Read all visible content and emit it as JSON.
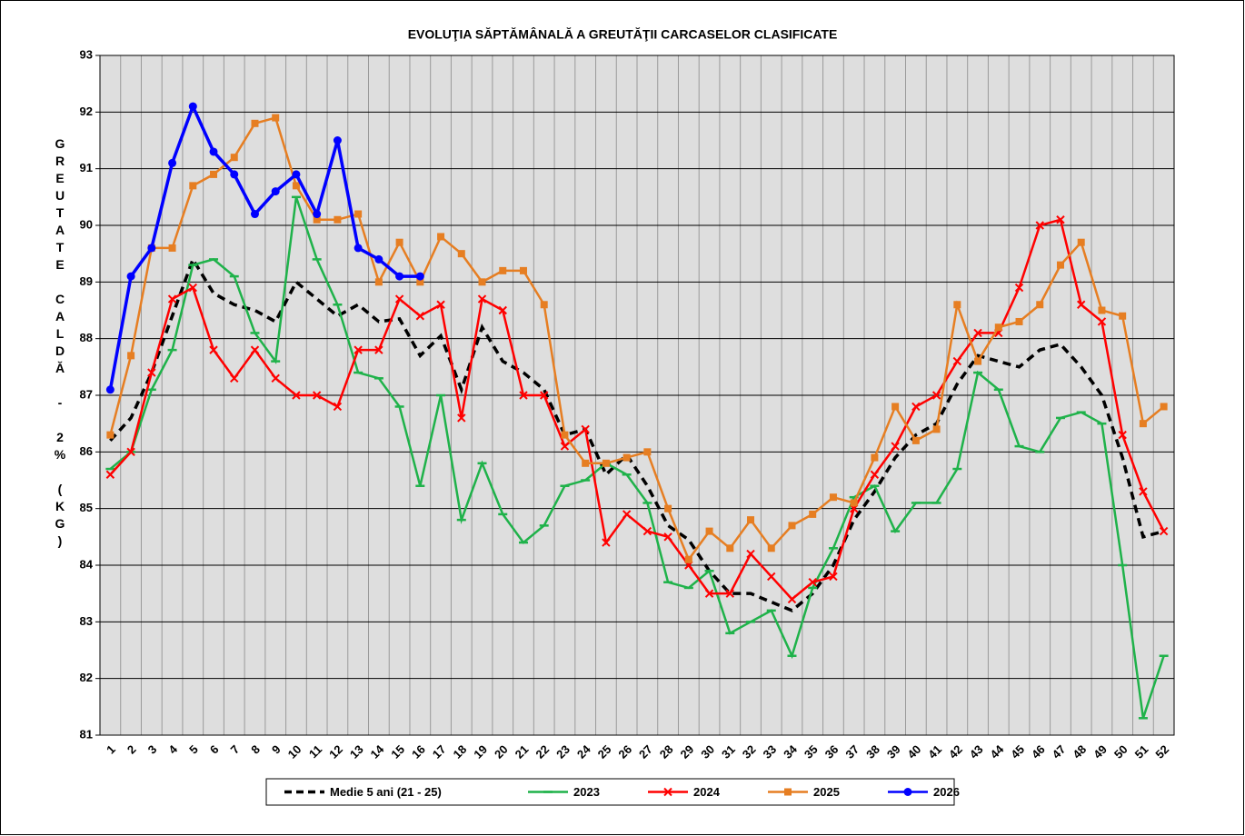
{
  "chart_data": {
    "type": "line",
    "title": "EVOLUŢIA SĂPTĂMÂNALĂ A GREUTĂŢII CARCASELOR CLASIFICATE",
    "ylabel": "GREUTATE CALDĂ - 2% (KG)",
    "categories": [
      "1",
      "2",
      "3",
      "4",
      "5",
      "6",
      "7",
      "8",
      "9",
      "10",
      "11",
      "12",
      "13",
      "14",
      "15",
      "16",
      "17",
      "18",
      "19",
      "20",
      "21",
      "22",
      "23",
      "24",
      "25",
      "26",
      "27",
      "28",
      "29",
      "30",
      "31",
      "32",
      "33",
      "34",
      "35",
      "36",
      "37",
      "38",
      "39",
      "40",
      "41",
      "42",
      "43",
      "44",
      "45",
      "46",
      "47",
      "48",
      "49",
      "50",
      "51",
      "52"
    ],
    "ylim": [
      81,
      93
    ],
    "yticks": [
      81,
      82,
      83,
      84,
      85,
      86,
      87,
      88,
      89,
      90,
      91,
      92,
      93
    ],
    "grid": true,
    "legend": "bottom",
    "series": [
      {
        "name": "Medie 5 ani (21 - 25)",
        "color": "#000000",
        "linestyle": "dashed",
        "marker": "none",
        "values": [
          86.2,
          86.6,
          87.4,
          88.4,
          89.4,
          88.8,
          88.6,
          88.5,
          88.3,
          89.0,
          88.7,
          88.4,
          88.6,
          88.3,
          88.35,
          87.7,
          88.05,
          87.1,
          88.2,
          87.6,
          87.4,
          87.1,
          86.3,
          86.4,
          85.6,
          85.95,
          85.4,
          84.7,
          84.45,
          83.9,
          83.5,
          83.5,
          83.35,
          83.2,
          83.5,
          84.0,
          84.8,
          85.3,
          85.9,
          86.3,
          86.5,
          87.2,
          87.7,
          87.6,
          87.5,
          87.8,
          87.9,
          87.5,
          87.0,
          85.9,
          84.5,
          84.6
        ]
      },
      {
        "name": "2023",
        "color": "#1fb24a",
        "linestyle": "solid",
        "marker": "dash",
        "values": [
          85.7,
          86.0,
          87.1,
          87.8,
          89.3,
          89.4,
          89.1,
          88.1,
          87.6,
          90.5,
          89.4,
          88.6,
          87.4,
          87.3,
          86.8,
          85.4,
          87.0,
          84.8,
          85.8,
          84.9,
          84.4,
          84.7,
          85.4,
          85.5,
          85.8,
          85.6,
          85.1,
          83.7,
          83.6,
          83.9,
          82.8,
          83.0,
          83.2,
          82.4,
          83.6,
          84.3,
          85.2,
          85.4,
          84.6,
          85.1,
          85.1,
          85.7,
          87.4,
          87.1,
          86.1,
          86.0,
          86.6,
          86.7,
          86.5,
          84.0,
          81.3,
          82.4
        ]
      },
      {
        "name": "2024",
        "color": "#ff0000",
        "linestyle": "solid",
        "marker": "x",
        "values": [
          85.6,
          86.0,
          87.4,
          88.7,
          88.9,
          87.8,
          87.3,
          87.8,
          87.3,
          87.0,
          87.0,
          86.8,
          87.8,
          87.8,
          88.7,
          88.4,
          88.6,
          86.6,
          88.7,
          88.5,
          87.0,
          87.0,
          86.1,
          86.4,
          84.4,
          84.9,
          84.6,
          84.5,
          84.0,
          83.5,
          83.5,
          84.2,
          83.8,
          83.4,
          83.7,
          83.8,
          85.0,
          85.6,
          86.1,
          86.8,
          87.0,
          87.6,
          88.1,
          88.1,
          88.9,
          90.0,
          90.1,
          88.6,
          88.3,
          86.3,
          85.3,
          84.6
        ]
      },
      {
        "name": "2025",
        "color": "#e67e22",
        "linestyle": "solid",
        "marker": "square",
        "values": [
          86.3,
          87.7,
          89.6,
          89.6,
          90.7,
          90.9,
          91.2,
          91.8,
          91.9,
          90.7,
          90.1,
          90.1,
          90.2,
          89.0,
          89.7,
          89.0,
          89.8,
          89.5,
          89.0,
          89.2,
          89.2,
          88.6,
          86.3,
          85.8,
          85.8,
          85.9,
          86.0,
          85.0,
          84.1,
          84.6,
          84.3,
          84.8,
          84.3,
          84.7,
          84.9,
          85.2,
          85.1,
          85.9,
          86.8,
          86.2,
          86.4,
          88.6,
          87.6,
          88.2,
          88.3,
          88.6,
          89.3,
          89.7,
          88.5,
          88.4,
          86.5,
          86.8
        ]
      },
      {
        "name": "2026",
        "color": "#0000ff",
        "linestyle": "solid",
        "marker": "circle",
        "values": [
          87.1,
          89.1,
          89.6,
          91.1,
          92.1,
          91.3,
          90.9,
          90.2,
          90.6,
          90.9,
          90.2,
          91.5,
          89.6,
          89.4,
          89.1,
          89.1,
          null,
          null,
          null,
          null,
          null,
          null,
          null,
          null,
          null,
          null,
          null,
          null,
          null,
          null,
          null,
          null,
          null,
          null,
          null,
          null,
          null,
          null,
          null,
          null,
          null,
          null,
          null,
          null,
          null,
          null,
          null,
          null,
          null,
          null,
          null,
          null
        ]
      }
    ]
  }
}
